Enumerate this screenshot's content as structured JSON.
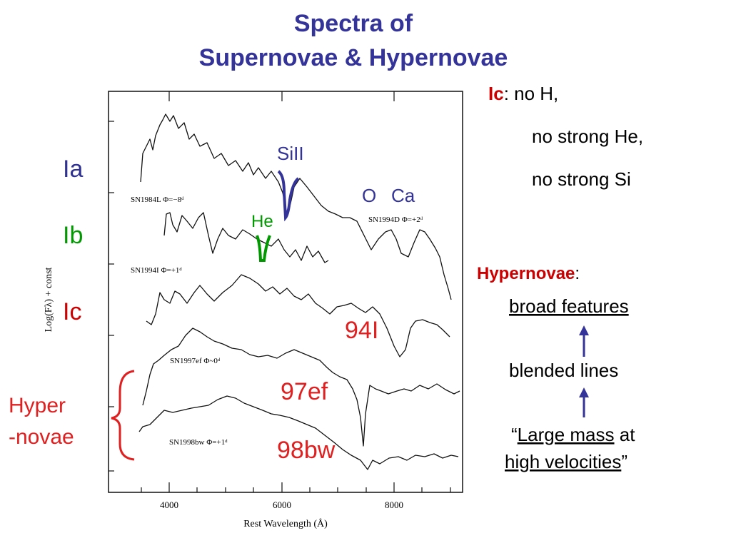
{
  "title": [
    "Spectra of",
    "Supernovae & Hypernovae"
  ],
  "figure": {
    "y_label": "Log(Fλ) + const",
    "x_label": "Rest Wavelength (Å)",
    "x_ticks": [
      "4000",
      "6000",
      "8000"
    ],
    "spectra_labels": [
      "SN1984L  Φ=−8ᵈ",
      "SN1994I  Φ=+1ᵈ",
      "SN1997ef  Φ~0ᵈ",
      "SN1998bw  Φ=+1ᵈ",
      "SN1994D  Φ=+2ᵈ"
    ]
  },
  "annotations": {
    "types": [
      "Ia",
      "Ib",
      "Ic"
    ],
    "hyper": [
      "Hyper",
      "-novae"
    ],
    "lines": [
      "SiII",
      "He",
      "O",
      "Ca"
    ],
    "objects": [
      "94I",
      "97ef",
      "98bw"
    ]
  },
  "notes": {
    "ic": {
      "term": "Ic",
      "rest": ": no H,",
      "more": [
        "no strong He,",
        "no strong Si"
      ]
    },
    "hypernovae": {
      "term": "Hypernovae",
      "colon": ":",
      "broad": "broad features",
      "blended": "blended lines",
      "quote_open": "“",
      "large_mass": "Large mass",
      "at": " at",
      "high_velocities": "high velocities",
      "quote_close": "”"
    }
  }
}
